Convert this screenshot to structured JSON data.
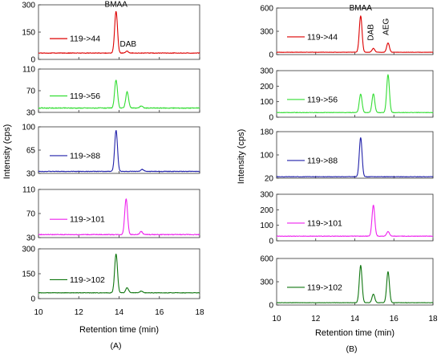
{
  "chart_data": [
    {
      "type": "line",
      "caption": "(A)",
      "xlabel": "Retention time (min)",
      "ylabel": "Intensity (cps)",
      "xlim": [
        10,
        18
      ],
      "x_ticks": [
        "10",
        "12",
        "14",
        "16",
        "18"
      ],
      "panels": [
        {
          "transition": "119->44",
          "color": "#dd0000",
          "ylim": [
            0,
            300
          ],
          "y_ticks": [
            "0",
            "150",
            "300"
          ],
          "baseline": 35,
          "noise": 3,
          "peaks": [
            {
              "rt": 13.85,
              "height": 265
            },
            {
              "rt": 14.4,
              "height": 45
            }
          ],
          "annotations": [
            {
              "text": "BMAA",
              "x": 13.85,
              "y": 290,
              "rotate": 0
            },
            {
              "text": "DAB",
              "x": 14.45,
              "y": 70,
              "rotate": 0
            }
          ]
        },
        {
          "transition": "119->56",
          "color": "#33dd33",
          "ylim": [
            30,
            110
          ],
          "y_ticks": [
            "30",
            "70",
            "110"
          ],
          "baseline": 38,
          "noise": 1.5,
          "peaks": [
            {
              "rt": 13.85,
              "height": 90
            },
            {
              "rt": 14.4,
              "height": 68
            },
            {
              "rt": 15.1,
              "height": 42
            }
          ]
        },
        {
          "transition": "119->88",
          "color": "#2222aa",
          "ylim": [
            30,
            100
          ],
          "y_ticks": [
            "30",
            "65",
            "100"
          ],
          "baseline": 33,
          "noise": 0.8,
          "peaks": [
            {
              "rt": 13.85,
              "height": 95
            },
            {
              "rt": 15.15,
              "height": 36
            }
          ]
        },
        {
          "transition": "119->101",
          "color": "#ee22ee",
          "ylim": [
            30,
            110
          ],
          "y_ticks": [
            "30",
            "70",
            "110"
          ],
          "baseline": 35,
          "noise": 1.2,
          "peaks": [
            {
              "rt": 14.35,
              "height": 95
            },
            {
              "rt": 15.1,
              "height": 40
            }
          ]
        },
        {
          "transition": "119->102",
          "color": "#117711",
          "ylim": [
            0,
            300
          ],
          "y_ticks": [
            "0",
            "150",
            "300"
          ],
          "baseline": 35,
          "noise": 3,
          "peaks": [
            {
              "rt": 13.85,
              "height": 270
            },
            {
              "rt": 14.4,
              "height": 65
            },
            {
              "rt": 15.1,
              "height": 45
            }
          ]
        }
      ]
    },
    {
      "type": "line",
      "caption": "(B)",
      "xlabel": "Retention time (min)",
      "ylabel": "Intensity (cps)",
      "xlim": [
        10,
        18
      ],
      "x_ticks": [
        "10",
        "12",
        "14",
        "16",
        "18"
      ],
      "panels": [
        {
          "transition": "119->44",
          "color": "#dd0000",
          "ylim": [
            0,
            600
          ],
          "y_ticks": [
            "0",
            "300",
            "600"
          ],
          "baseline": 30,
          "noise": 4,
          "peaks": [
            {
              "rt": 14.3,
              "height": 500
            },
            {
              "rt": 14.95,
              "height": 80
            },
            {
              "rt": 15.7,
              "height": 150
            }
          ],
          "annotations": [
            {
              "text": "BMAA",
              "x": 14.3,
              "y": 570,
              "rotate": 0
            },
            {
              "text": "DAB",
              "x": 14.95,
              "y": 180,
              "rotate": -90
            },
            {
              "text": "AEG",
              "x": 15.72,
              "y": 250,
              "rotate": -90
            }
          ]
        },
        {
          "transition": "119->56",
          "color": "#33dd33",
          "ylim": [
            0,
            300
          ],
          "y_ticks": [
            "0",
            "100",
            "200",
            "300"
          ],
          "baseline": 30,
          "noise": 3,
          "peaks": [
            {
              "rt": 14.3,
              "height": 150
            },
            {
              "rt": 14.95,
              "height": 150
            },
            {
              "rt": 15.7,
              "height": 275
            }
          ]
        },
        {
          "transition": "119->88",
          "color": "#2222aa",
          "ylim": [
            20,
            180
          ],
          "y_ticks": [
            "20",
            "100",
            "180"
          ],
          "baseline": 25,
          "noise": 1.5,
          "peaks": [
            {
              "rt": 14.3,
              "height": 160
            }
          ]
        },
        {
          "transition": "119->101",
          "color": "#ee22ee",
          "ylim": [
            0,
            300
          ],
          "y_ticks": [
            "0",
            "100",
            "200",
            "300"
          ],
          "baseline": 30,
          "noise": 3,
          "peaks": [
            {
              "rt": 14.95,
              "height": 230
            },
            {
              "rt": 15.7,
              "height": 60
            }
          ]
        },
        {
          "transition": "119->102",
          "color": "#117711",
          "ylim": [
            0,
            600
          ],
          "y_ticks": [
            "0",
            "300",
            "600"
          ],
          "baseline": 30,
          "noise": 4,
          "peaks": [
            {
              "rt": 14.3,
              "height": 510
            },
            {
              "rt": 14.95,
              "height": 140
            },
            {
              "rt": 15.7,
              "height": 430
            }
          ]
        }
      ]
    }
  ]
}
